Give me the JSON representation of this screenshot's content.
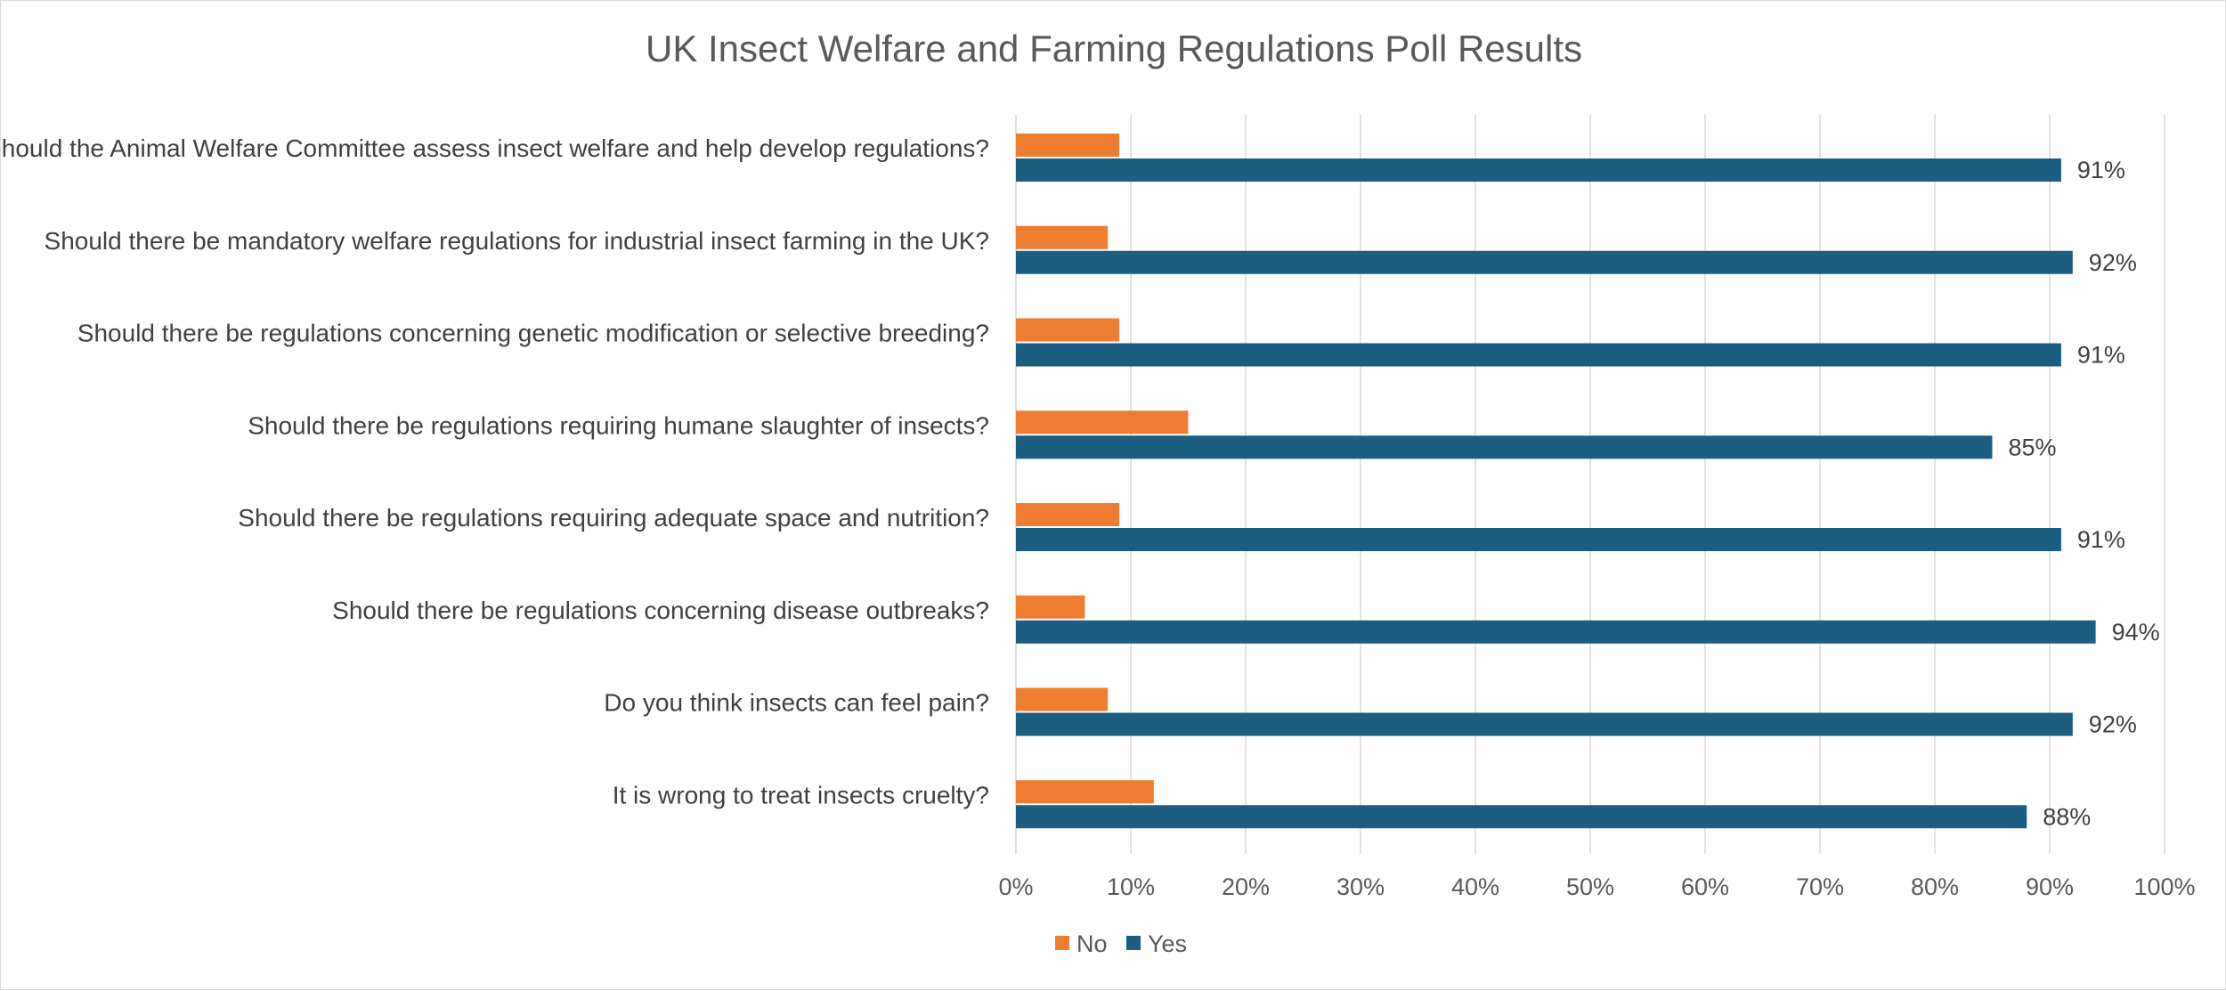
{
  "chart_data": {
    "type": "bar",
    "orientation": "horizontal",
    "title": "UK Insect Welfare and Farming Regulations Poll Results",
    "categories": [
      "Should the Animal Welfare Committee assess insect welfare and help develop regulations?",
      "Should there be mandatory welfare regulations for industrial insect farming in the UK?",
      "Should there be regulations concerning genetic modification or selective breeding?",
      "Should there be regulations requiring humane slaughter of insects?",
      "Should there be regulations requiring adequate space and nutrition?",
      "Should there be regulations concerning disease outbreaks?",
      "Do you think insects can feel pain?",
      "It is wrong to treat insects cruelty?"
    ],
    "series": [
      {
        "name": "No",
        "color": "#ED7D31",
        "values": [
          9,
          8,
          9,
          15,
          9,
          6,
          8,
          12
        ]
      },
      {
        "name": "Yes",
        "color": "#1B5E82",
        "values": [
          91,
          92,
          91,
          85,
          91,
          94,
          92,
          88
        ]
      }
    ],
    "data_labels": {
      "Yes": [
        "91%",
        "92%",
        "91%",
        "85%",
        "91%",
        "94%",
        "92%",
        "88%"
      ]
    },
    "xlim": [
      0,
      100
    ],
    "x_ticks": [
      "0%",
      "10%",
      "20%",
      "30%",
      "40%",
      "50%",
      "60%",
      "70%",
      "80%",
      "90%",
      "100%"
    ],
    "grid": "vertical",
    "legend": "bottom",
    "xlabel": "",
    "ylabel": ""
  }
}
